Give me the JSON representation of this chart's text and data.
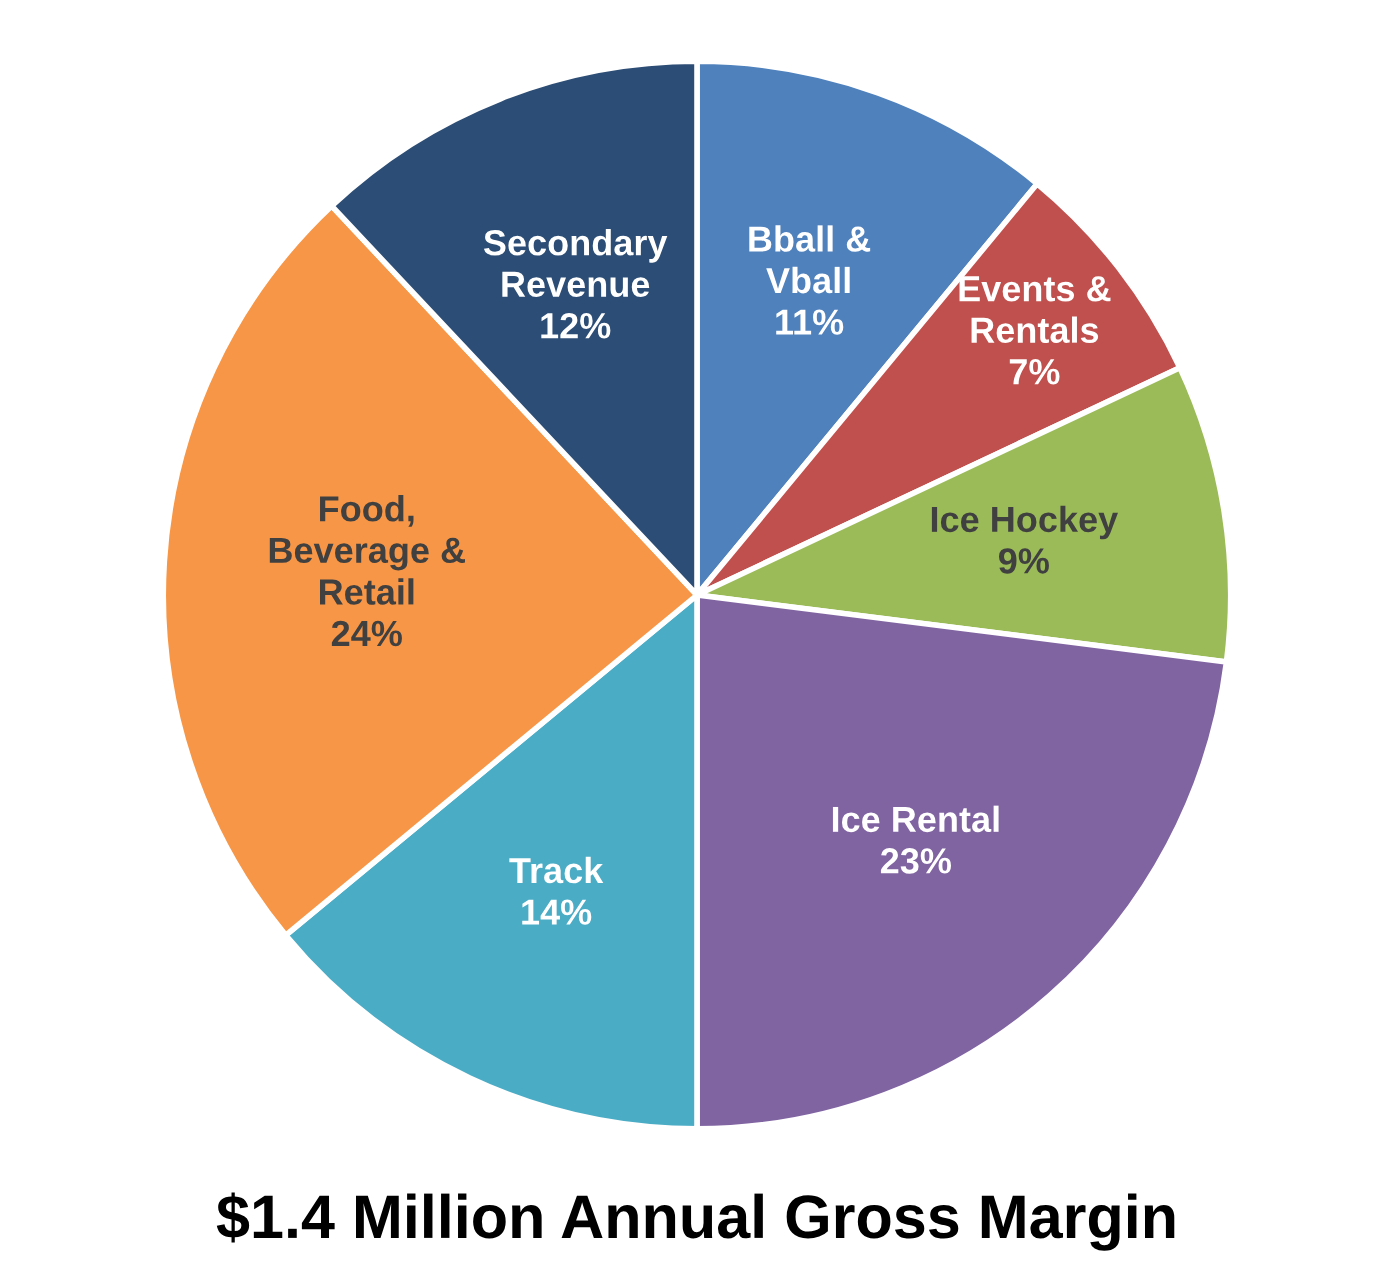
{
  "chart_data": {
    "type": "pie",
    "title": "$1.4 Million Annual Gross Margin",
    "categories": [
      "Bball &\nVball",
      "Events &\nRentals",
      "Ice Hockey",
      "Ice Rental",
      "Track",
      "Food,\nBeverage &\nRetail",
      "Secondary\nRevenue"
    ],
    "values": [
      11,
      7,
      9,
      23,
      14,
      24,
      12
    ],
    "colors": [
      "#4f81bd",
      "#c0504d",
      "#9bbb59",
      "#8064a2",
      "#4bacc6",
      "#f79646",
      "#2c4d75"
    ],
    "value_labels": [
      "11%",
      "7%",
      "9%",
      "23%",
      "14%",
      "24%",
      "12%"
    ]
  }
}
